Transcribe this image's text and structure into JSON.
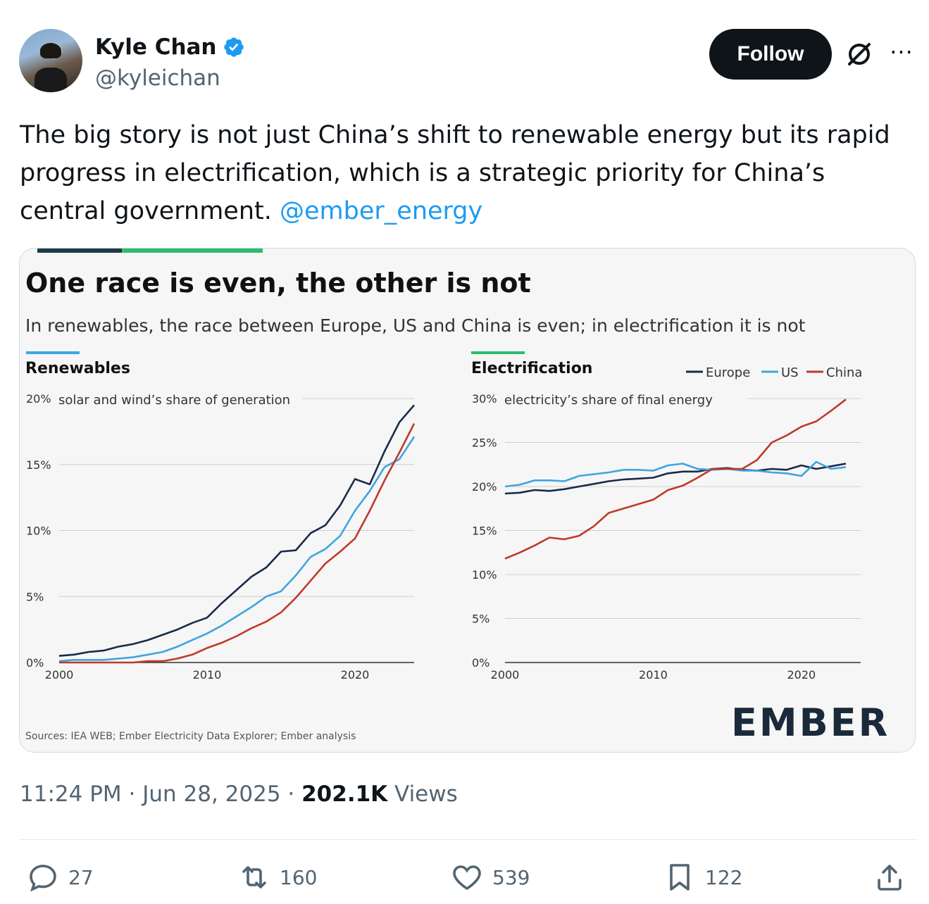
{
  "author": {
    "name": "Kyle Chan",
    "handle": "@kyleichan"
  },
  "header": {
    "follow_label": "Follow",
    "more_label": "···"
  },
  "tweet": {
    "text": "The big story is not just China’s shift to renewable energy but its rapid progress in electrification, which is a strategic priority for China’s central government.",
    "mention": "@ember_energy"
  },
  "card": {
    "title": "One race is even, the other is not",
    "subtitle": "In renewables, the race between Europe, US and China is even; in electrification it is not",
    "source": "Sources: IEA WEB; Ember Electricity Data Explorer; Ember analysis",
    "logo_text": "EMBER"
  },
  "colors": {
    "europe": "#1b2a4a",
    "us": "#3ea5e0",
    "china": "#c0392b",
    "accent_blue": "#3ea5e0",
    "accent_green": "#2dbd6e"
  },
  "chart_data": [
    {
      "type": "line",
      "title": "Renewables",
      "ylabel": "solar and wind’s share of generation",
      "x": [
        2000,
        2001,
        2002,
        2003,
        2004,
        2005,
        2006,
        2007,
        2008,
        2009,
        2010,
        2011,
        2012,
        2013,
        2014,
        2015,
        2016,
        2017,
        2018,
        2019,
        2020,
        2021,
        2022,
        2023,
        2024
      ],
      "xticks": [
        "2000",
        "2010",
        "2020"
      ],
      "yticks": [
        "0%",
        "5%",
        "10%",
        "15%",
        "20%"
      ],
      "ylim": [
        0,
        20
      ],
      "series": [
        {
          "name": "Europe",
          "values": [
            0.5,
            0.6,
            0.8,
            0.9,
            1.2,
            1.4,
            1.7,
            2.1,
            2.5,
            3.0,
            3.4,
            4.5,
            5.5,
            6.5,
            7.2,
            8.4,
            8.5,
            9.8,
            10.4,
            11.9,
            13.9,
            13.5,
            16.0,
            18.2,
            19.5
          ]
        },
        {
          "name": "US",
          "values": [
            0.1,
            0.2,
            0.2,
            0.2,
            0.3,
            0.4,
            0.6,
            0.8,
            1.2,
            1.7,
            2.2,
            2.8,
            3.5,
            4.2,
            5.0,
            5.4,
            6.6,
            8.0,
            8.6,
            9.6,
            11.5,
            13.0,
            14.8,
            15.4,
            17.1
          ]
        },
        {
          "name": "China",
          "values": [
            0.0,
            0.0,
            0.0,
            0.0,
            0.0,
            0.0,
            0.1,
            0.1,
            0.3,
            0.6,
            1.1,
            1.5,
            2.0,
            2.6,
            3.1,
            3.8,
            4.9,
            6.2,
            7.5,
            8.4,
            9.4,
            11.5,
            13.8,
            15.9,
            18.1
          ]
        }
      ]
    },
    {
      "type": "line",
      "title": "Electrification",
      "ylabel": "electricity’s share of final energy",
      "x": [
        2000,
        2001,
        2002,
        2003,
        2004,
        2005,
        2006,
        2007,
        2008,
        2009,
        2010,
        2011,
        2012,
        2013,
        2014,
        2015,
        2016,
        2017,
        2018,
        2019,
        2020,
        2021,
        2022,
        2023
      ],
      "xticks": [
        "2000",
        "2010",
        "2020"
      ],
      "yticks": [
        "0%",
        "5%",
        "10%",
        "15%",
        "20%",
        "25%",
        "30%"
      ],
      "ylim": [
        0,
        30
      ],
      "legend": [
        "Europe",
        "US",
        "China"
      ],
      "series": [
        {
          "name": "Europe",
          "values": [
            19.2,
            19.3,
            19.6,
            19.5,
            19.7,
            20.0,
            20.3,
            20.6,
            20.8,
            20.9,
            21.0,
            21.5,
            21.7,
            21.7,
            22.0,
            22.1,
            21.9,
            21.8,
            22.0,
            21.9,
            22.4,
            22.0,
            22.3,
            22.6
          ]
        },
        {
          "name": "US",
          "values": [
            20.0,
            20.2,
            20.7,
            20.7,
            20.6,
            21.2,
            21.4,
            21.6,
            21.9,
            21.9,
            21.8,
            22.4,
            22.6,
            22.0,
            21.9,
            22.0,
            21.8,
            21.8,
            21.6,
            21.5,
            21.2,
            22.8,
            22.0,
            22.2
          ]
        },
        {
          "name": "China",
          "values": [
            11.8,
            12.5,
            13.3,
            14.2,
            14.0,
            14.4,
            15.5,
            17.0,
            17.5,
            18.0,
            18.5,
            19.6,
            20.1,
            21.0,
            22.0,
            22.0,
            22.0,
            23.0,
            25.0,
            25.8,
            26.8,
            27.4,
            28.6,
            29.9
          ]
        }
      ]
    }
  ],
  "timestamp": {
    "time": "11:24 PM",
    "date": "Jun 28, 2025",
    "views_count": "202.1K",
    "views_label": "Views"
  },
  "actions": {
    "replies": "27",
    "reposts": "160",
    "likes": "539",
    "bookmarks": "122"
  }
}
